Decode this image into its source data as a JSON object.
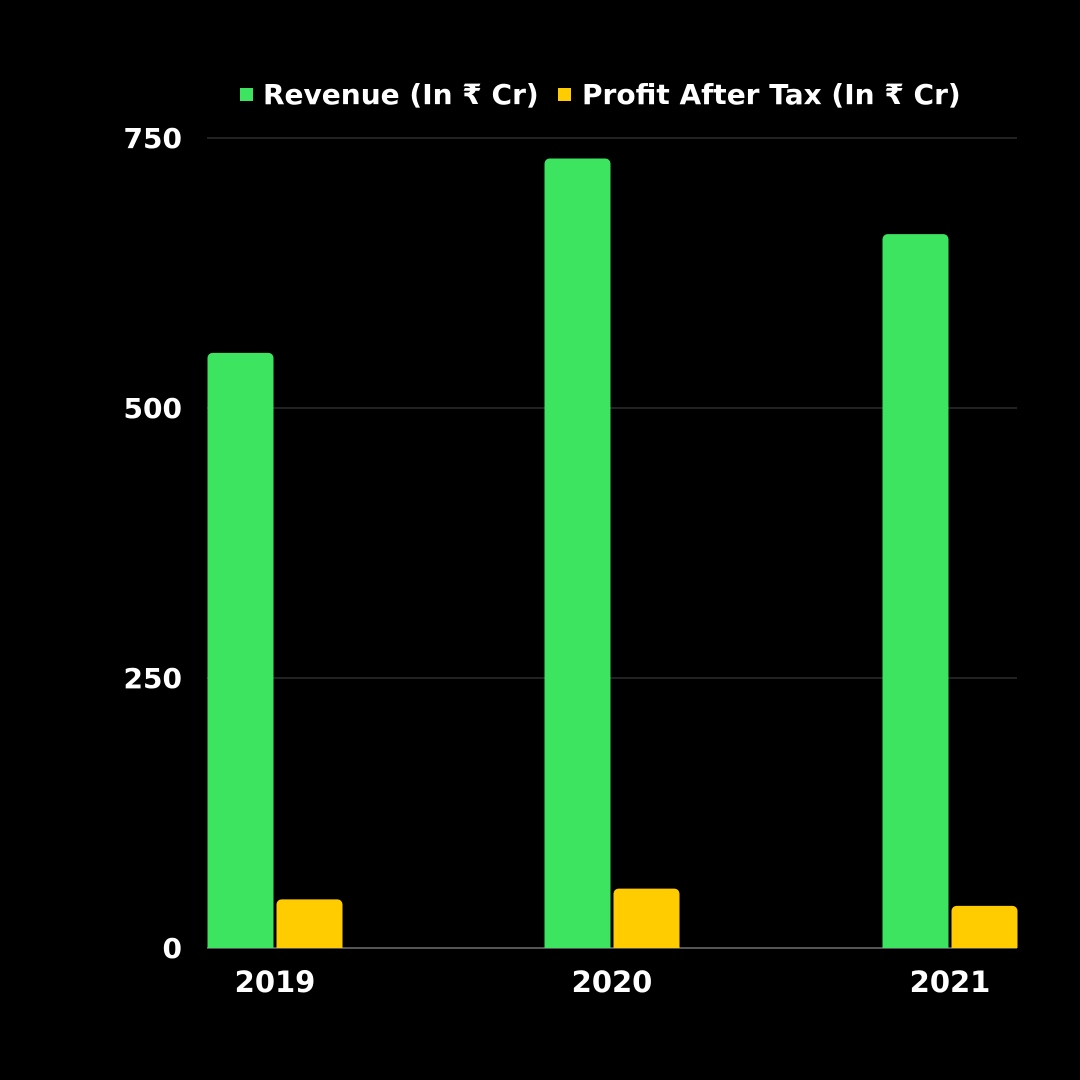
{
  "chart_data": {
    "type": "bar",
    "categories": [
      "2019",
      "2020",
      "2021"
    ],
    "series": [
      {
        "name": "Revenue (In ₹ Cr)",
        "color": "#3de45f",
        "values": [
          551,
          731,
          661
        ]
      },
      {
        "name": "Profit After Tax (In ₹ Cr)",
        "color": "#ffcc00",
        "values": [
          45,
          55,
          39
        ]
      }
    ],
    "yticks": [
      "0",
      "250",
      "500",
      "750"
    ],
    "ylim": [
      0,
      750
    ],
    "grid": true,
    "legend_position": "top",
    "title": "",
    "xlabel": "",
    "ylabel": "",
    "background": "#000000",
    "gridline_color": "#2e2e2e",
    "axis_color": "#555555",
    "text_color": "#ffffff"
  }
}
